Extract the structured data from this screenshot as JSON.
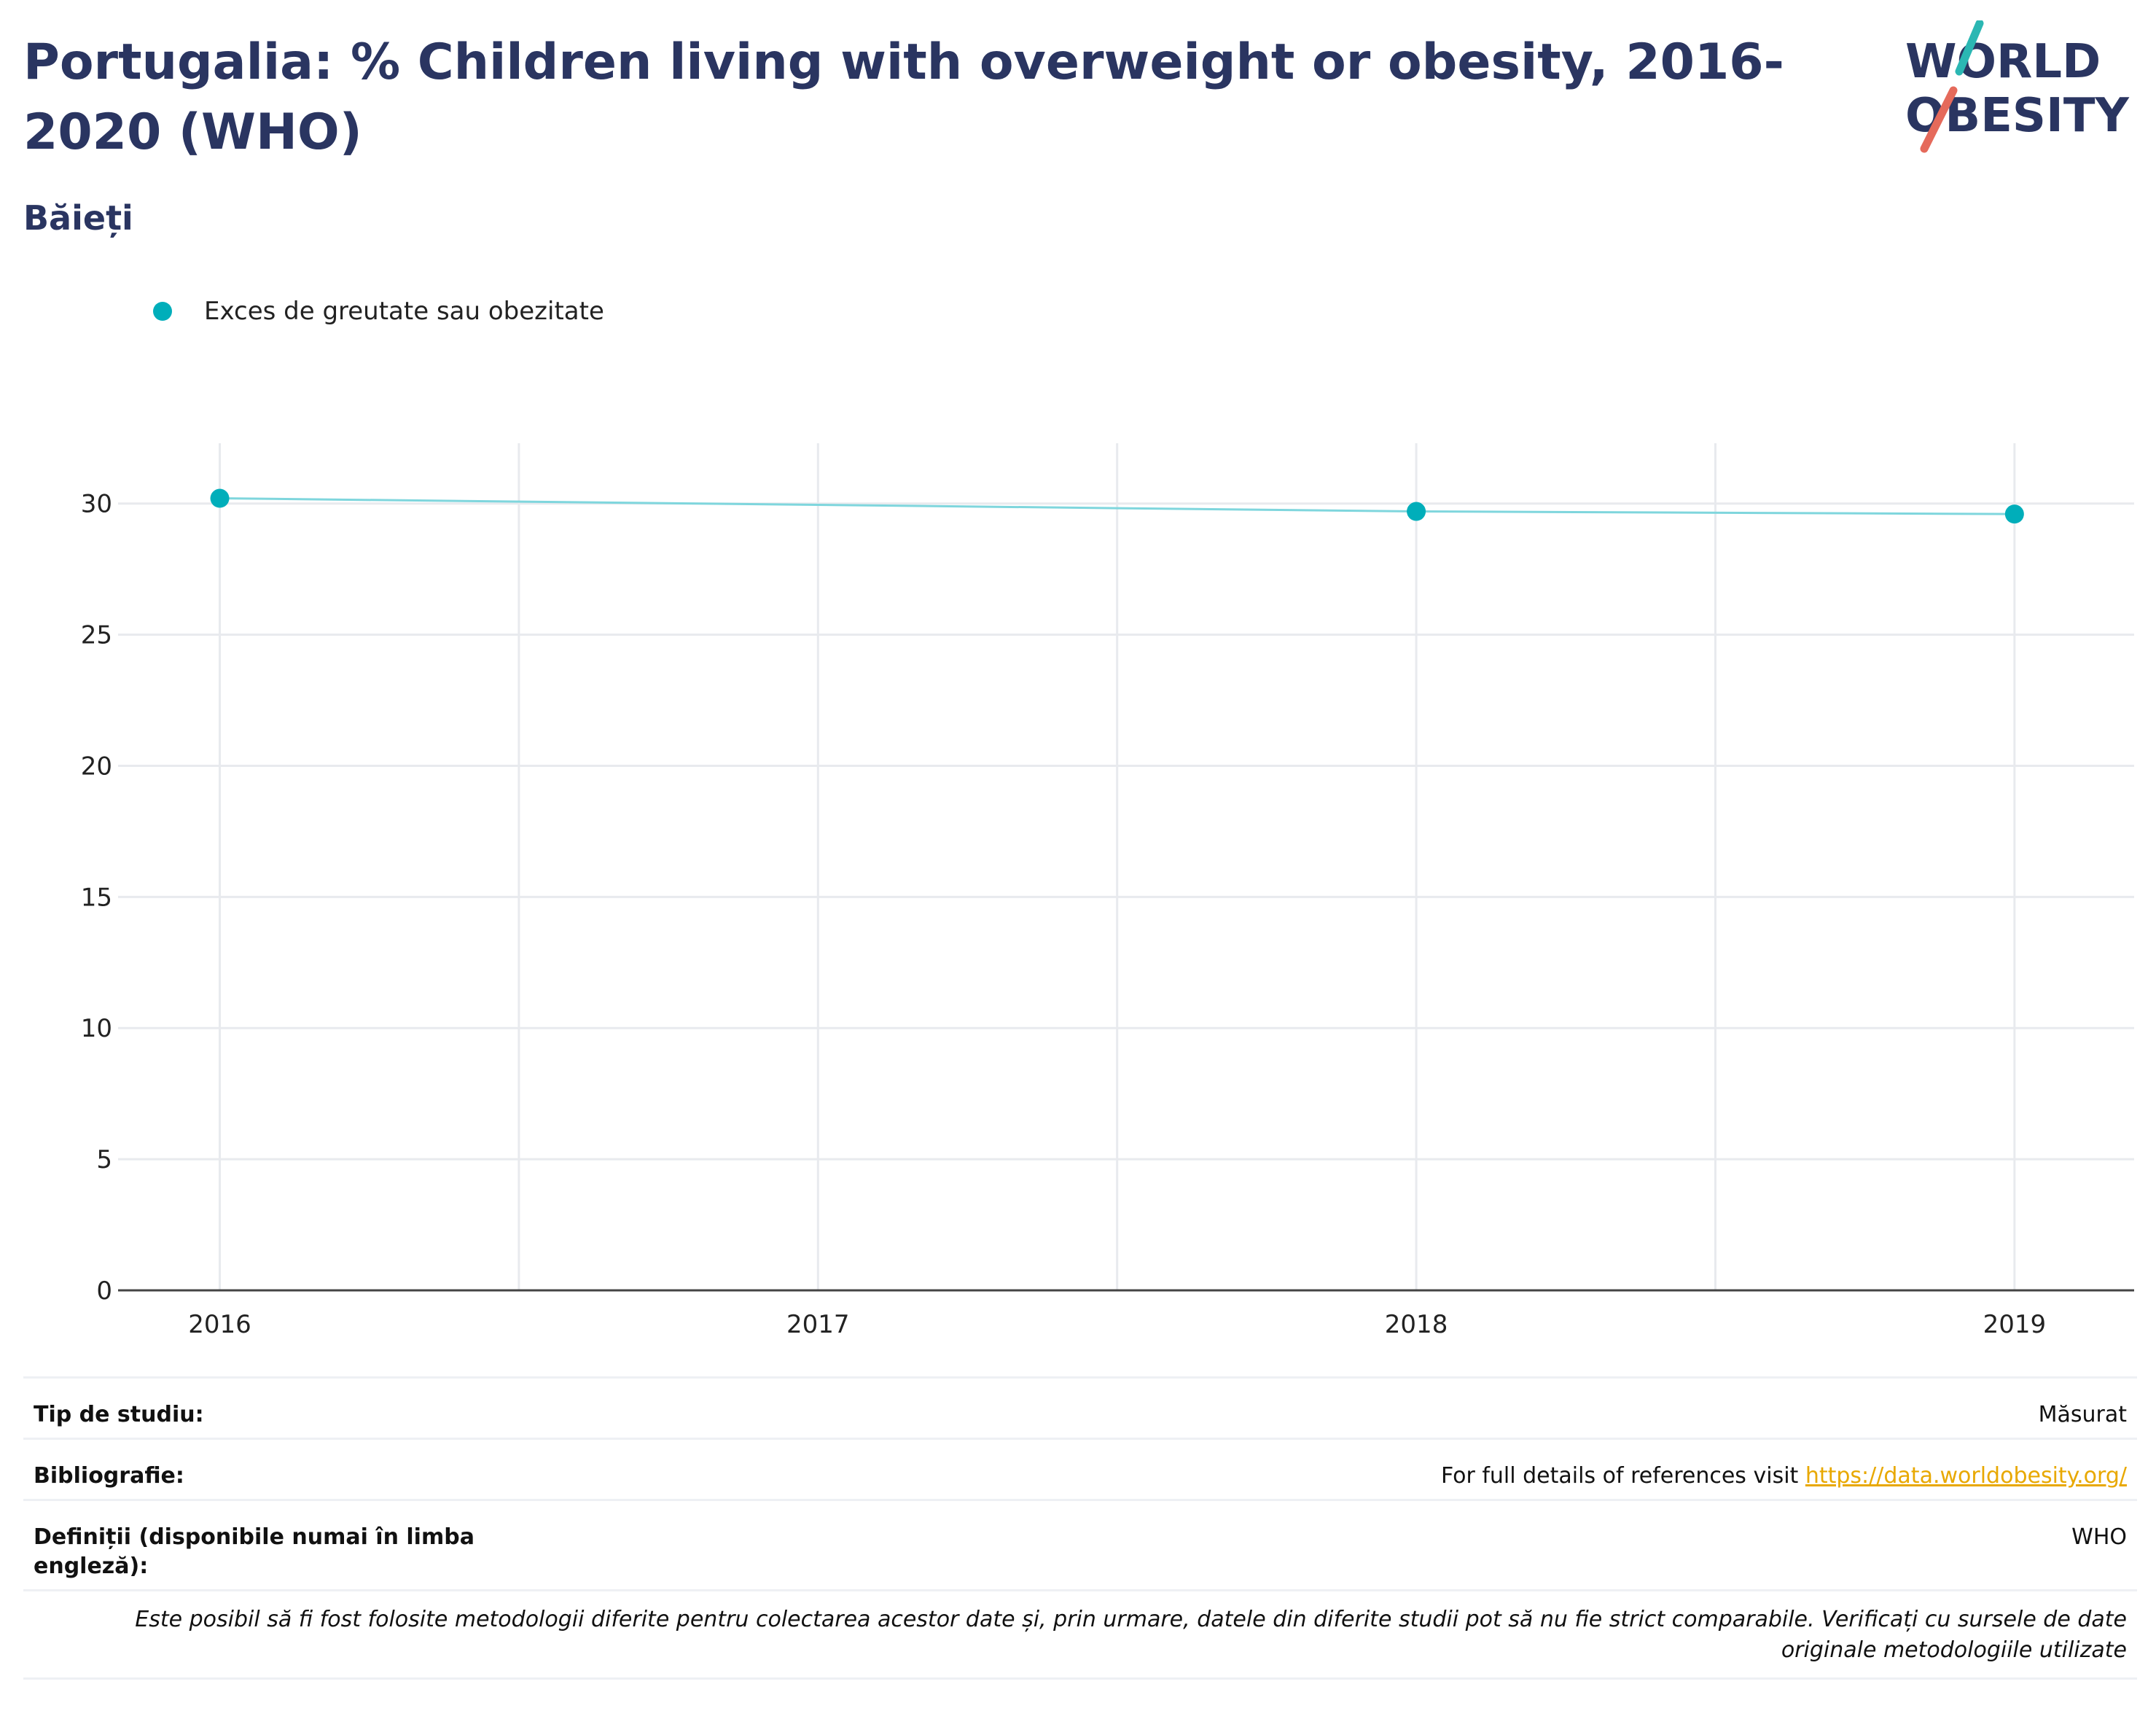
{
  "header": {
    "title": "Portugalia: % Children living with overweight or obesity, 2016-2020 (WHO)",
    "subtitle": "Băieți"
  },
  "logo": {
    "line1": "WORLD",
    "line2": "OBESITY",
    "text_color": "#2a3561",
    "accent_teal": "#2bb7b3",
    "accent_coral": "#e56a5b"
  },
  "legend": {
    "label": "Exces de greutate sau obezitate",
    "color": "#00aeba"
  },
  "colors": {
    "marker": "#00aeba",
    "line": "#7fd6dd",
    "grid": "#e8eaee",
    "axis": "#444444",
    "title": "#2a3561"
  },
  "chart_data": {
    "type": "line",
    "title": "Portugalia: % Children living with overweight or obesity, 2016-2020 (WHO)",
    "subtitle": "Băieți",
    "xlabel": "",
    "ylabel": "",
    "x_ticks": [
      "2016",
      "2017",
      "2018",
      "2019"
    ],
    "y_ticks": [
      "0",
      "5",
      "10",
      "15",
      "20",
      "25",
      "30"
    ],
    "xlim": [
      2015.83,
      2019.2
    ],
    "ylim": [
      0,
      32.3
    ],
    "grid": true,
    "legend_position": "top-left",
    "series": [
      {
        "name": "Exces de greutate sau obezitate",
        "x": [
          2016,
          2018,
          2019
        ],
        "y": [
          30.2,
          29.7,
          29.6
        ]
      }
    ]
  },
  "info": {
    "study_type_label": "Tip de studiu:",
    "study_type_value": "Măsurat",
    "bibliography_label": "Bibliografie:",
    "bibliography_text": "For full details of references visit ",
    "bibliography_link": "https://data.worldobesity.org/",
    "definitions_label": "Definiții (disponibile numai în limba engleză):",
    "definitions_value": "WHO",
    "note": "Este posibil să fi fost folosite metodologii diferite pentru colectarea acestor date și, prin urmare, datele din diferite studii pot să nu fie strict comparabile. Verificați cu sursele de date originale metodologiile utilizate"
  }
}
